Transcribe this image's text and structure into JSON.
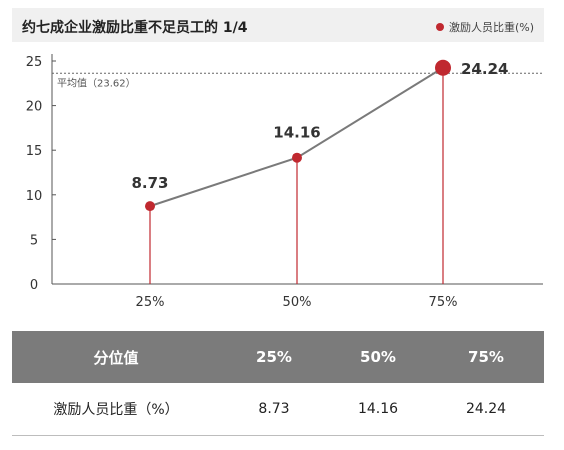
{
  "colors": {
    "accent": "#c0282f",
    "line": "#7a7a7a",
    "header_bg": "#7b7b7b"
  },
  "chart_data": {
    "type": "line",
    "title": "约七成企业激励比重不足员工的 1/4",
    "legend_label": "激励人员比重(%)",
    "legend_position": "top-right",
    "categories": [
      "25%",
      "50%",
      "75%"
    ],
    "series": [
      {
        "name": "激励人员比重(%)",
        "values": [
          8.73,
          14.16,
          24.24
        ]
      }
    ],
    "data_labels": [
      "8.73",
      "14.16",
      "24.24"
    ],
    "y_ticks": [
      "0",
      "5",
      "10",
      "15",
      "20",
      "25"
    ],
    "ylim": [
      0,
      25
    ],
    "grid": false,
    "reference_line": {
      "value": 23.62,
      "label": "平均值（23.62）"
    }
  },
  "table": {
    "headers": [
      "分位值",
      "25%",
      "50%",
      "75%"
    ],
    "rows": [
      [
        "激励人员比重（%）",
        "8.73",
        "14.16",
        "24.24"
      ]
    ]
  }
}
